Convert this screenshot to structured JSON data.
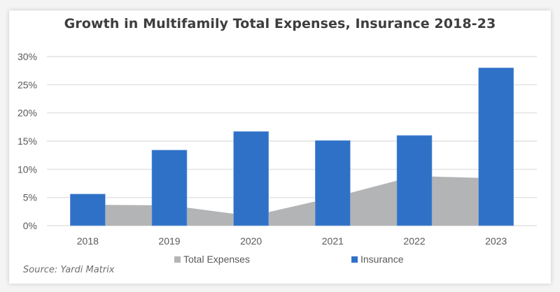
{
  "chart_data": {
    "type": "bar",
    "title": "Growth in Multifamily Total Expenses, Insurance 2018-23",
    "xlabel": "",
    "ylabel": "",
    "categories": [
      "2018",
      "2019",
      "2020",
      "2021",
      "2022",
      "2023"
    ],
    "series": [
      {
        "name": "Total Expenses",
        "type": "area",
        "color": "#b3b4b6",
        "values": [
          3.7,
          3.6,
          1.7,
          5.0,
          8.8,
          8.4
        ]
      },
      {
        "name": "Insurance",
        "type": "bar",
        "color": "#2f71c7",
        "values": [
          5.6,
          13.4,
          16.7,
          15.1,
          16.0,
          28.0
        ]
      }
    ],
    "ylim": [
      0,
      30
    ],
    "yticks": [
      0,
      5,
      10,
      15,
      20,
      25,
      30
    ],
    "ytick_labels": [
      "0%",
      "5%",
      "10%",
      "15%",
      "20%",
      "25%",
      "30%"
    ],
    "grid": true,
    "legend_position": "bottom",
    "source": "Source: Yardi Matrix"
  }
}
